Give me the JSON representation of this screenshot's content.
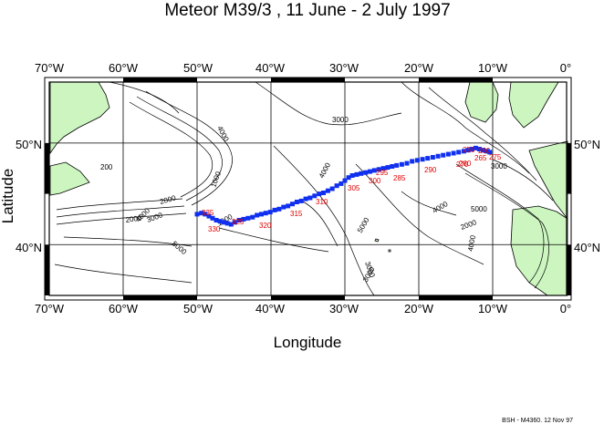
{
  "title": "Meteor M39/3 , 11 June - 2 July 1997",
  "xlabel": "Longitude",
  "ylabel": "Latitude",
  "x_ticks": [
    "70°W",
    "60°W",
    "50°W",
    "40°W",
    "30°W",
    "20°W",
    "10°W",
    "0°"
  ],
  "y_ticks": [
    "50°N",
    "40°N"
  ],
  "footer": "BSH - M4360. 12 Nov 97",
  "extent": {
    "lon_min": -70,
    "lon_max": 0,
    "lat_min": 35,
    "lat_max": 56
  },
  "colors": {
    "land": "#ccf5c0",
    "track": "#1030f0",
    "station_label": "#e00000",
    "frame": "#000000"
  },
  "contour_labels": [
    "4000",
    "3000",
    "200",
    "1000",
    "2000",
    "3000",
    "4000",
    "5000",
    "2000",
    "4000",
    "3000",
    "5000",
    "4000",
    "3000",
    "4000",
    "5000",
    "3000",
    "1000",
    "2000"
  ],
  "station_labels": [
    "255",
    "260",
    "265",
    "270",
    "275",
    "280",
    "285",
    "290",
    "295",
    "300",
    "305",
    "310",
    "315",
    "320",
    "325",
    "330",
    "335"
  ],
  "track": [
    [
      -50.0,
      43.0
    ],
    [
      -49.4,
      43.1
    ],
    [
      -48.9,
      43.0
    ],
    [
      -48.4,
      42.8
    ],
    [
      -47.9,
      42.6
    ],
    [
      -47.4,
      42.4
    ],
    [
      -46.9,
      42.3
    ],
    [
      -46.4,
      42.2
    ],
    [
      -45.9,
      42.1
    ],
    [
      -45.4,
      42.0
    ],
    [
      -44.9,
      42.2
    ],
    [
      -44.3,
      42.4
    ],
    [
      -43.7,
      42.5
    ],
    [
      -43.1,
      42.6
    ],
    [
      -42.5,
      42.7
    ],
    [
      -41.9,
      42.9
    ],
    [
      -41.3,
      43.0
    ],
    [
      -40.7,
      43.1
    ],
    [
      -40.1,
      43.2
    ],
    [
      -39.5,
      43.4
    ],
    [
      -38.9,
      43.5
    ],
    [
      -38.3,
      43.7
    ],
    [
      -37.7,
      43.8
    ],
    [
      -37.1,
      44.0
    ],
    [
      -36.5,
      44.2
    ],
    [
      -35.9,
      44.3
    ],
    [
      -35.3,
      44.5
    ],
    [
      -34.7,
      44.6
    ],
    [
      -34.1,
      44.8
    ],
    [
      -33.5,
      45.0
    ],
    [
      -32.9,
      45.1
    ],
    [
      -32.3,
      45.3
    ],
    [
      -31.7,
      45.5
    ],
    [
      -31.1,
      45.8
    ],
    [
      -30.5,
      46.0
    ],
    [
      -30.0,
      46.3
    ],
    [
      -29.5,
      46.6
    ],
    [
      -29.0,
      46.8
    ],
    [
      -28.4,
      46.9
    ],
    [
      -27.8,
      47.0
    ],
    [
      -27.2,
      47.1
    ],
    [
      -26.6,
      47.2
    ],
    [
      -26.0,
      47.3
    ],
    [
      -25.4,
      47.4
    ],
    [
      -24.8,
      47.5
    ],
    [
      -24.2,
      47.6
    ],
    [
      -23.6,
      47.7
    ],
    [
      -23.0,
      47.8
    ],
    [
      -22.3,
      47.9
    ],
    [
      -21.6,
      48.0
    ],
    [
      -20.9,
      48.2
    ],
    [
      -20.2,
      48.3
    ],
    [
      -19.5,
      48.4
    ],
    [
      -18.8,
      48.5
    ],
    [
      -18.1,
      48.6
    ],
    [
      -17.4,
      48.7
    ],
    [
      -16.7,
      48.8
    ],
    [
      -16.0,
      48.9
    ],
    [
      -15.3,
      49.0
    ],
    [
      -14.6,
      49.1
    ],
    [
      -13.9,
      49.2
    ],
    [
      -13.3,
      49.3
    ],
    [
      -12.8,
      49.4
    ],
    [
      -12.3,
      49.5
    ],
    [
      -11.8,
      49.4
    ],
    [
      -11.3,
      49.3
    ],
    [
      -10.8,
      49.2
    ],
    [
      -10.4,
      49.1
    ]
  ]
}
